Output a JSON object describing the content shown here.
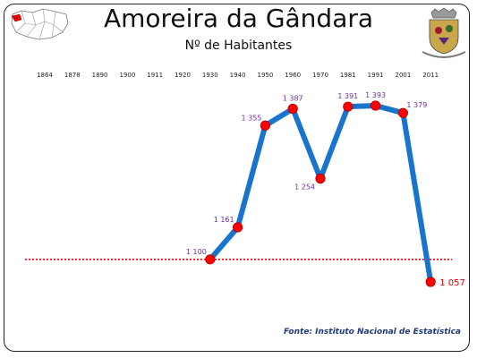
{
  "header": {
    "title": "Amoreira da Gândara",
    "subtitle": "Nº de Habitantes"
  },
  "footer": {
    "source": "Fonte: Instituto Nacional de Estatística"
  },
  "colors": {
    "line": "#1874cd",
    "marker": "#ff0000",
    "reference_line": "#ff0000",
    "data_label": "#7030a0",
    "last_label": "#e00000"
  },
  "icons": {
    "map": "portugal-location-map-icon",
    "coat_of_arms": "parish-coat-of-arms-icon"
  },
  "chart_data": {
    "type": "line",
    "title": "Nº de Habitantes",
    "x": [
      "1864",
      "1878",
      "1890",
      "1900",
      "1911",
      "1920",
      "1930",
      "1940",
      "1950",
      "1960",
      "1970",
      "1981",
      "1991",
      "2001",
      "2011"
    ],
    "series": [
      {
        "values": [
          null,
          null,
          null,
          null,
          null,
          null,
          1100,
          1161,
          1355,
          1387,
          1254,
          1391,
          1393,
          1379,
          1057
        ],
        "labels": [
          "",
          "",
          "",
          "",
          "",
          "",
          "1 100",
          "1 161",
          "1 355",
          "1 387",
          "1 254",
          "1 391",
          "1 393",
          "1 379",
          "1 057"
        ]
      }
    ],
    "reference_line": {
      "value": 1100,
      "style": "dotted"
    },
    "ylim": [
      1000,
      1420
    ],
    "xlabel": "",
    "ylabel": "",
    "x_tick_position": "top",
    "grid": false,
    "legend": "none"
  }
}
